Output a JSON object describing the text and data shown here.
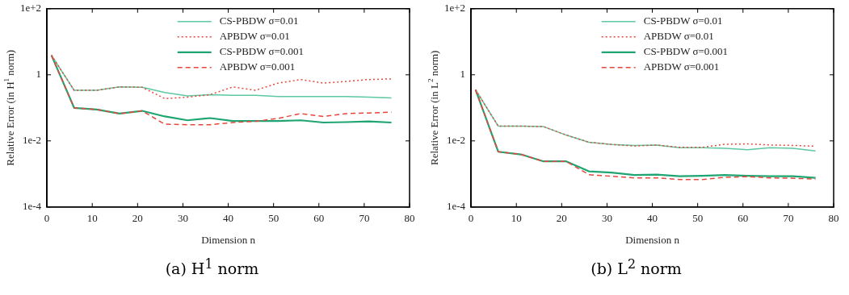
{
  "chart_data": [
    {
      "type": "line",
      "title": "(a) H$^{1}$ norm",
      "xlabel": "Dimension n",
      "ylabel": "Relative Error (in H$^{1}$ norm)",
      "x": [
        1,
        6,
        11,
        16,
        21,
        26,
        31,
        36,
        41,
        46,
        51,
        56,
        61,
        66,
        71,
        76
      ],
      "series": [
        {
          "name": "CS-PBDW σ=0.01",
          "color": "#5cc9a0",
          "line_style": "solid",
          "values": [
            3.9,
            0.34,
            0.34,
            0.43,
            0.42,
            0.29,
            0.23,
            0.25,
            0.24,
            0.24,
            0.22,
            0.22,
            0.22,
            0.22,
            0.21,
            0.2
          ]
        },
        {
          "name": "APBDW σ=0.01",
          "color": "#e8463c",
          "line_style": "dotted",
          "values": [
            3.9,
            0.34,
            0.34,
            0.43,
            0.42,
            0.19,
            0.21,
            0.25,
            0.43,
            0.34,
            0.56,
            0.72,
            0.56,
            0.63,
            0.72,
            0.75
          ]
        },
        {
          "name": "CS-PBDW σ=0.001",
          "color": "#1fa572",
          "line_style": "solid",
          "values": [
            3.9,
            0.1,
            0.089,
            0.067,
            0.081,
            0.055,
            0.042,
            0.049,
            0.04,
            0.04,
            0.04,
            0.042,
            0.036,
            0.037,
            0.039,
            0.036
          ]
        },
        {
          "name": "APBDW σ=0.001",
          "color": "#e8463c",
          "line_style": "dashed",
          "values": [
            3.9,
            0.1,
            0.089,
            0.067,
            0.081,
            0.032,
            0.031,
            0.031,
            0.036,
            0.039,
            0.048,
            0.067,
            0.055,
            0.067,
            0.07,
            0.074
          ]
        }
      ],
      "xlim": [
        0,
        80
      ],
      "xticks": [
        0,
        10,
        20,
        30,
        40,
        50,
        60,
        70,
        80
      ],
      "ylim": [
        0.0001,
        100
      ],
      "yticks": [
        {
          "value": 0.0001,
          "label": "1e-4"
        },
        {
          "value": 0.01,
          "label": "1e-2"
        },
        1,
        {
          "value": 100,
          "label": "1e+2"
        }
      ],
      "log": "y",
      "grid": false,
      "legend": "top right",
      "marker": "none"
    },
    {
      "type": "line",
      "title": "(b) L$^{2}$ norm",
      "xlabel": "Dimension n",
      "ylabel": "Relative Error (in L$^{2}$ norm)",
      "x": [
        1,
        6,
        11,
        16,
        21,
        26,
        31,
        36,
        41,
        46,
        51,
        56,
        61,
        66,
        71,
        76
      ],
      "series": [
        {
          "name": "CS-PBDW σ=0.01",
          "color": "#5cc9a0",
          "line_style": "solid",
          "values": [
            0.35,
            0.028,
            0.028,
            0.027,
            0.015,
            0.0091,
            0.0078,
            0.0073,
            0.0075,
            0.0062,
            0.0062,
            0.006,
            0.0054,
            0.0062,
            0.006,
            0.005
          ]
        },
        {
          "name": "APBDW σ=0.01",
          "color": "#e8463c",
          "line_style": "dotted",
          "values": [
            0.35,
            0.028,
            0.028,
            0.027,
            0.015,
            0.0091,
            0.0078,
            0.007,
            0.0075,
            0.0064,
            0.0064,
            0.0079,
            0.0081,
            0.0075,
            0.0073,
            0.0069
          ]
        },
        {
          "name": "CS-PBDW σ=0.001",
          "color": "#1fa572",
          "line_style": "solid",
          "values": [
            0.35,
            0.0047,
            0.0039,
            0.0024,
            0.0024,
            0.0012,
            0.0011,
            0.00093,
            0.00095,
            0.00085,
            0.00088,
            0.00093,
            0.00088,
            0.00085,
            0.00085,
            0.00076
          ]
        },
        {
          "name": "APBDW σ=0.001",
          "color": "#e8463c",
          "line_style": "dashed",
          "values": [
            0.35,
            0.0047,
            0.0039,
            0.0024,
            0.0024,
            0.00095,
            0.00085,
            0.00076,
            0.00076,
            0.00068,
            0.00068,
            0.00079,
            0.00083,
            0.00076,
            0.00074,
            0.0007
          ]
        }
      ],
      "xlim": [
        0,
        80
      ],
      "xticks": [
        0,
        10,
        20,
        30,
        40,
        50,
        60,
        70,
        80
      ],
      "ylim": [
        0.0001,
        100
      ],
      "yticks": [
        {
          "value": 0.0001,
          "label": "1e-4"
        },
        {
          "value": 0.01,
          "label": "1e-2"
        },
        1,
        {
          "value": 100,
          "label": "1e+2"
        }
      ],
      "log": "y",
      "grid": false,
      "legend": "top right",
      "marker": "none"
    }
  ]
}
